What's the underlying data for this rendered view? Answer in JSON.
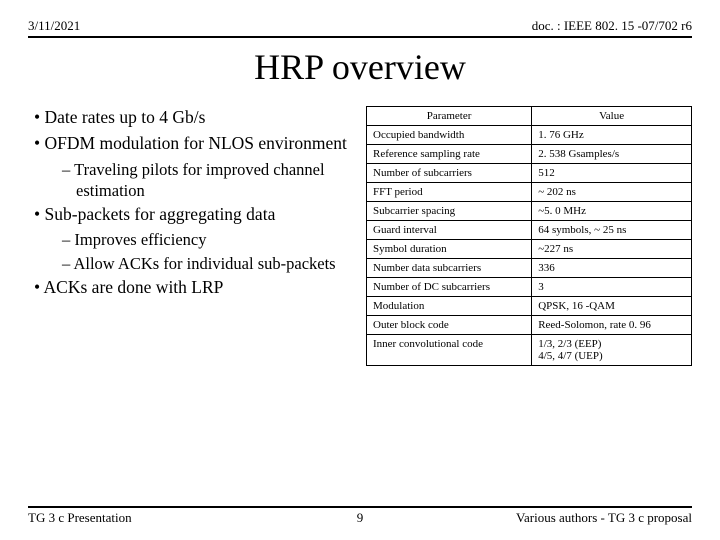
{
  "header": {
    "date": "3/11/2021",
    "docref": "doc. : IEEE 802. 15 -07/702 r6"
  },
  "title": "HRP overview",
  "bullets": [
    {
      "level": 1,
      "text": "Date rates up to 4 Gb/s"
    },
    {
      "level": 1,
      "text": "OFDM modulation for NLOS environment"
    },
    {
      "level": 2,
      "text": "Traveling pilots for improved channel estimation"
    },
    {
      "level": 1,
      "text": "Sub-packets for aggregating data"
    },
    {
      "level": 2,
      "text": "Improves efficiency"
    },
    {
      "level": 2,
      "text": "Allow ACKs for individual sub-packets"
    },
    {
      "level": 1,
      "text": "ACKs are done with LRP"
    }
  ],
  "table": {
    "headers": [
      "Parameter",
      "Value"
    ],
    "rows": [
      [
        "Occupied bandwidth",
        "1. 76 GHz"
      ],
      [
        "Reference sampling rate",
        "2. 538 Gsamples/s"
      ],
      [
        "Number of subcarriers",
        "512"
      ],
      [
        "FFT period",
        "~ 202 ns"
      ],
      [
        "Subcarrier spacing",
        "~5. 0 MHz"
      ],
      [
        "Guard interval",
        "64 symbols, ~ 25 ns"
      ],
      [
        "Symbol duration",
        "~227 ns"
      ],
      [
        "Number data subcarriers",
        "336"
      ],
      [
        "Number of DC subcarriers",
        "3"
      ],
      [
        "Modulation",
        "QPSK, 16 -QAM"
      ],
      [
        "Outer block code",
        "Reed-Solomon, rate 0. 96"
      ],
      [
        "Inner convolutional code",
        "1/3, 2/3 (EEP)\n4/5, 4/7 (UEP)"
      ]
    ]
  },
  "footer": {
    "left": "TG 3 c Presentation",
    "page": "9",
    "right": "Various authors - TG 3 c proposal"
  }
}
